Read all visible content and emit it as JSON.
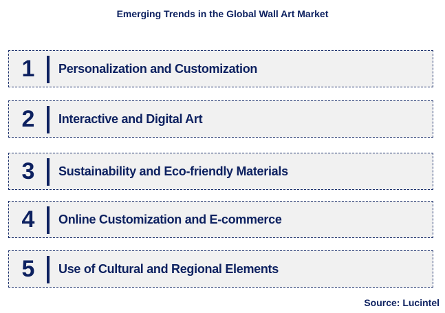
{
  "title": "Emerging Trends in the Global Wall Art Market",
  "items": [
    {
      "number": "1",
      "label": "Personalization and Customization"
    },
    {
      "number": "2",
      "label": "Interactive and Digital Art"
    },
    {
      "number": "3",
      "label": "Sustainability and Eco-friendly Materials"
    },
    {
      "number": "4",
      "label": "Online Customization and E-commerce"
    },
    {
      "number": "5",
      "label": "Use of Cultural and Regional Elements"
    }
  ],
  "source": "Source: Lucintel",
  "colors": {
    "text": "#0d2160",
    "box_fill": "#f1f1f1"
  }
}
